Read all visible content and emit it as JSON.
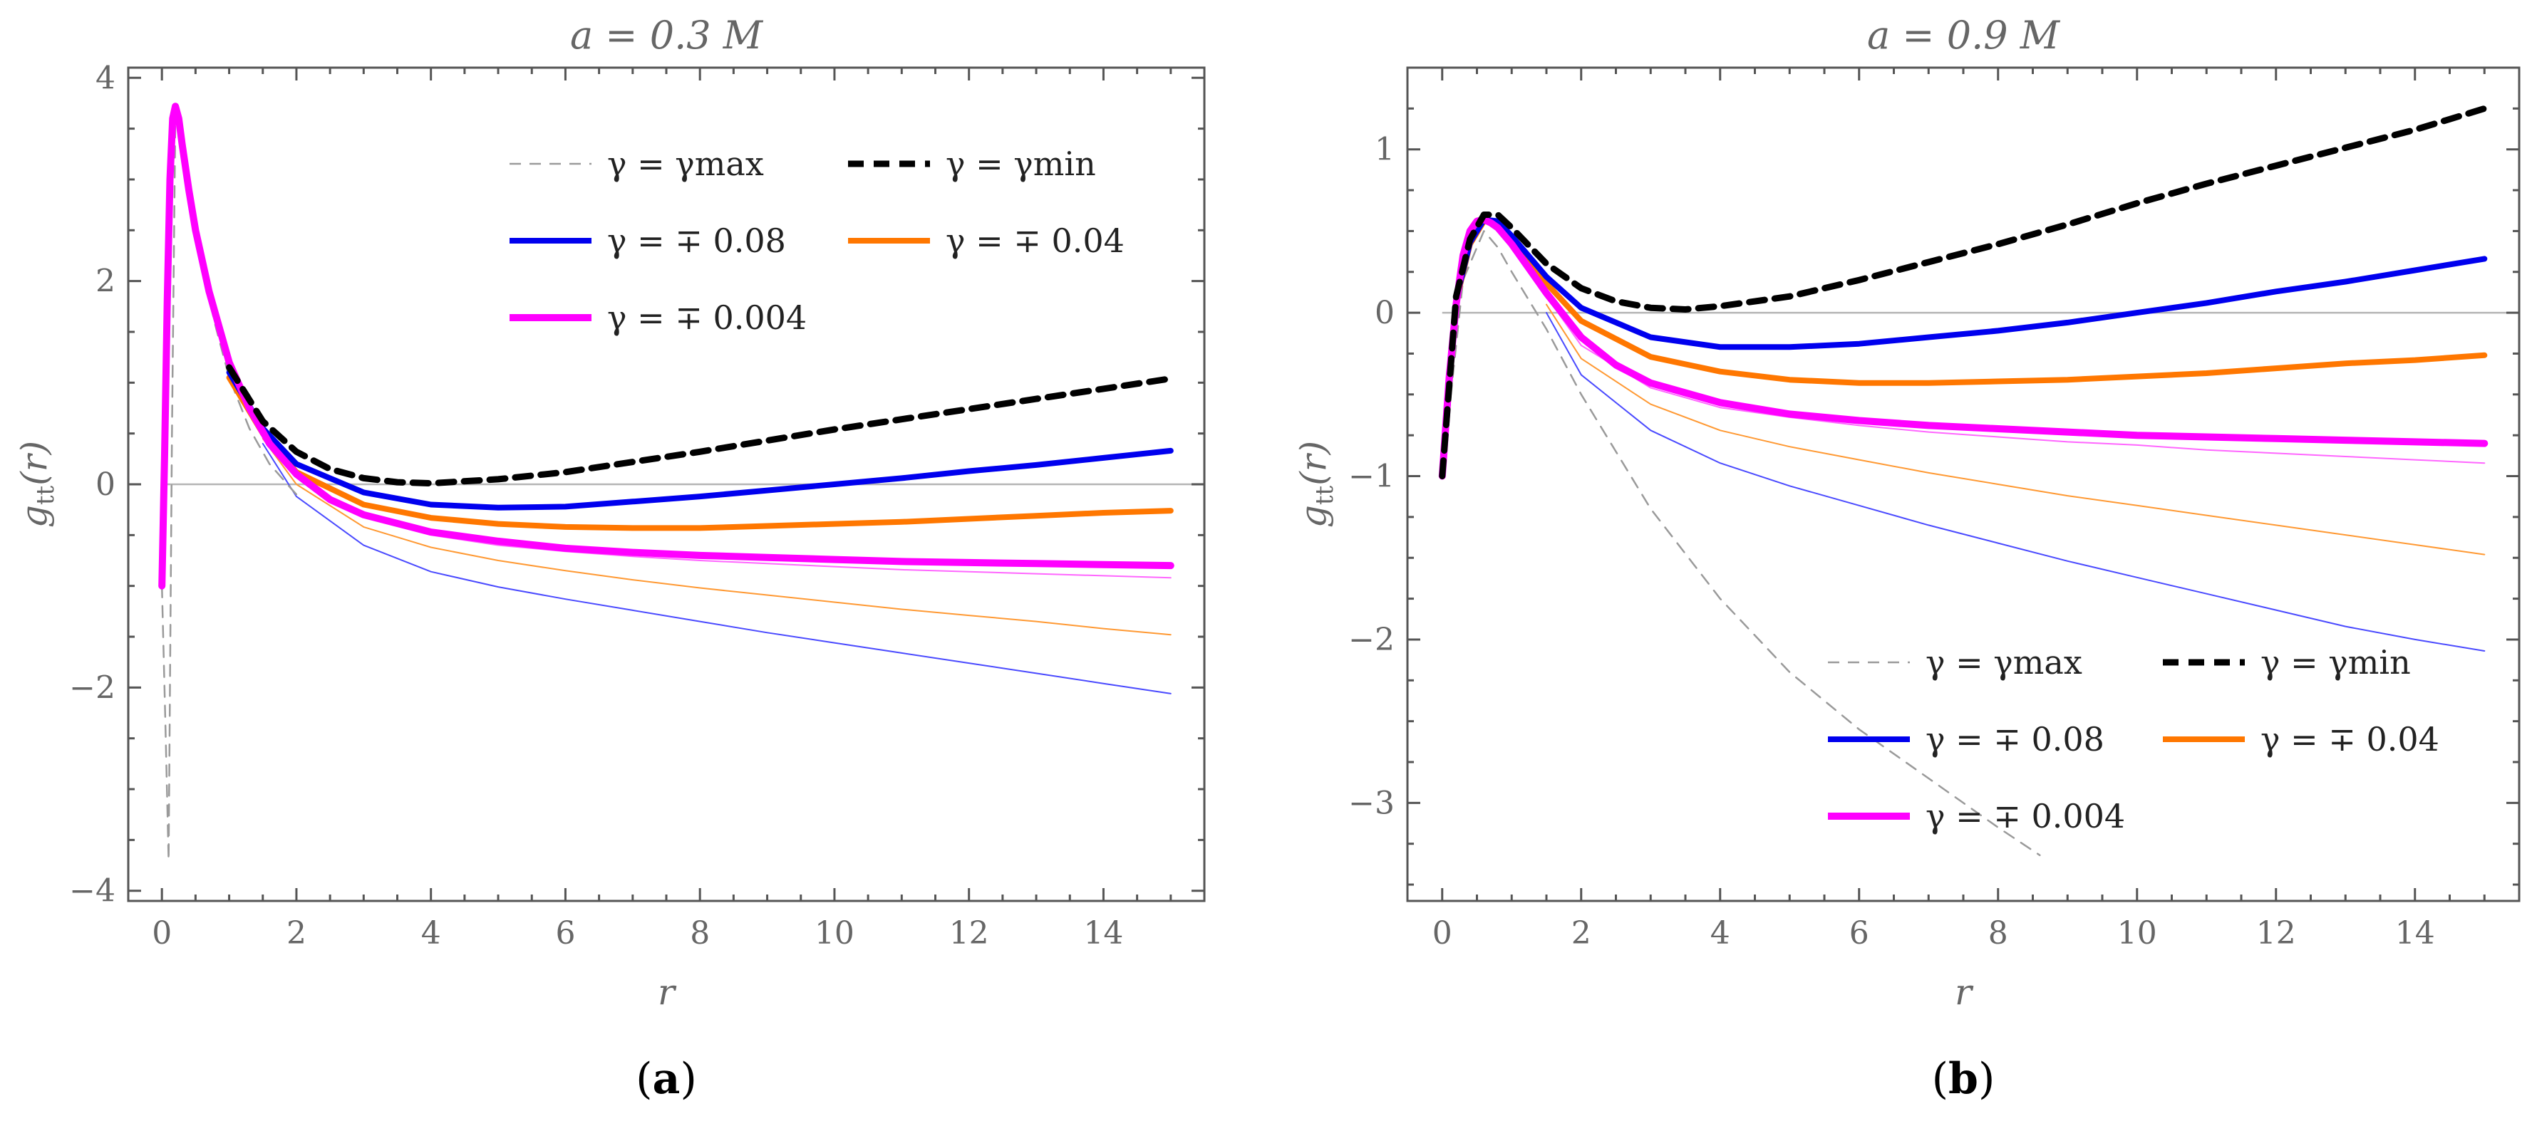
{
  "chart_data": [
    {
      "type": "line",
      "panel": "(a)",
      "title": "a = 0.3 M",
      "xlabel": "r",
      "ylabel": "g_tt(r)",
      "xlim": [
        -0.5,
        15.5
      ],
      "ylim": [
        -4.1,
        4.1
      ],
      "xticks": [
        0,
        2,
        4,
        6,
        8,
        10,
        12,
        14
      ],
      "yticks": [
        -4,
        -2,
        0,
        2,
        4
      ],
      "legend_position": "top-right",
      "legend": [
        {
          "label": "γ = γmax",
          "series": "gmax_dashed"
        },
        {
          "label": "γ = γmin",
          "series": "gmin_dashed"
        },
        {
          "label": "γ = ∓ 0.08",
          "series": "g008_thick"
        },
        {
          "label": "γ = ∓ 0.04",
          "series": "g004_thick"
        },
        {
          "label": "γ = ∓ 0.004",
          "series": "g0004_thick"
        }
      ],
      "series": [
        {
          "name": "gmax_dashed",
          "color": "#9a9a9a",
          "width": 2.5,
          "dash": "16 12",
          "x": [
            0.0,
            0.05,
            0.1,
            0.15,
            0.2,
            0.3,
            0.5,
            0.8,
            1.0,
            1.3,
            1.6,
            2.0
          ],
          "y": [
            -1.0,
            -2.3,
            -3.7,
            0.5,
            3.65,
            3.3,
            2.4,
            1.55,
            1.05,
            0.55,
            0.2,
            -0.1
          ]
        },
        {
          "name": "gmin_dashed",
          "color": "#000000",
          "width": 9,
          "dash": "22 14",
          "x": [
            1.0,
            1.5,
            2.0,
            2.5,
            3.0,
            3.5,
            4.0,
            5.0,
            6.0,
            7.0,
            8.0,
            9.0,
            10.0,
            11.0,
            12.0,
            13.0,
            14.0,
            15.0
          ],
          "y": [
            1.15,
            0.62,
            0.32,
            0.15,
            0.06,
            0.02,
            0.01,
            0.05,
            0.12,
            0.22,
            0.32,
            0.43,
            0.54,
            0.64,
            0.74,
            0.84,
            0.94,
            1.04
          ]
        },
        {
          "name": "g008_thick",
          "color": "#0000ee",
          "width": 8,
          "dash": "",
          "x": [
            1.0,
            1.5,
            2.0,
            3.0,
            4.0,
            5.0,
            6.0,
            7.0,
            8.0,
            9.0,
            10.0,
            11.0,
            12.0,
            13.0,
            14.0,
            15.0
          ],
          "y": [
            1.1,
            0.55,
            0.2,
            -0.08,
            -0.2,
            -0.23,
            -0.22,
            -0.17,
            -0.12,
            -0.06,
            0.0,
            0.06,
            0.13,
            0.19,
            0.26,
            0.33
          ]
        },
        {
          "name": "g004_thick",
          "color": "#ff7700",
          "width": 8,
          "dash": "",
          "x": [
            1.0,
            1.5,
            2.0,
            3.0,
            4.0,
            5.0,
            6.0,
            7.0,
            8.0,
            9.0,
            10.0,
            11.0,
            12.0,
            13.0,
            14.0,
            15.0
          ],
          "y": [
            1.05,
            0.5,
            0.12,
            -0.2,
            -0.33,
            -0.39,
            -0.42,
            -0.43,
            -0.43,
            -0.41,
            -0.39,
            -0.37,
            -0.34,
            -0.31,
            -0.28,
            -0.26
          ]
        },
        {
          "name": "g0004_thick",
          "color": "#ff00ff",
          "width": 10,
          "dash": "",
          "x": [
            0.0,
            0.04,
            0.08,
            0.12,
            0.16,
            0.2,
            0.25,
            0.3,
            0.4,
            0.5,
            0.7,
            1.0,
            1.3,
            1.6,
            2.0,
            2.5,
            3.0,
            4.0,
            5.0,
            6.0,
            7.0,
            8.0,
            9.0,
            10.0,
            11.0,
            12.0,
            13.0,
            14.0,
            15.0
          ],
          "y": [
            -1.0,
            0.3,
            1.8,
            3.0,
            3.6,
            3.72,
            3.6,
            3.35,
            2.9,
            2.5,
            1.9,
            1.2,
            0.75,
            0.4,
            0.1,
            -0.15,
            -0.3,
            -0.47,
            -0.56,
            -0.63,
            -0.67,
            -0.7,
            -0.72,
            -0.74,
            -0.76,
            -0.77,
            -0.78,
            -0.79,
            -0.8
          ]
        },
        {
          "name": "g0004_thin",
          "color": "#ff66ff",
          "width": 2,
          "dash": "",
          "x": [
            1.5,
            2.0,
            3.0,
            4.0,
            5.0,
            6.0,
            7.0,
            8.0,
            9.0,
            10.0,
            11.0,
            12.0,
            13.0,
            14.0,
            15.0
          ],
          "y": [
            0.5,
            0.08,
            -0.32,
            -0.5,
            -0.6,
            -0.66,
            -0.71,
            -0.75,
            -0.78,
            -0.81,
            -0.84,
            -0.86,
            -0.88,
            -0.9,
            -0.92
          ]
        },
        {
          "name": "g004_thin",
          "color": "#ff9933",
          "width": 2,
          "dash": "",
          "x": [
            1.5,
            2.0,
            3.0,
            4.0,
            5.0,
            6.0,
            7.0,
            8.0,
            9.0,
            10.0,
            11.0,
            12.0,
            13.0,
            14.0,
            15.0
          ],
          "y": [
            0.45,
            0.0,
            -0.42,
            -0.62,
            -0.75,
            -0.85,
            -0.94,
            -1.02,
            -1.09,
            -1.16,
            -1.23,
            -1.29,
            -1.35,
            -1.42,
            -1.48
          ]
        },
        {
          "name": "g008_thin",
          "color": "#4a4aff",
          "width": 2,
          "dash": "",
          "x": [
            1.5,
            2.0,
            3.0,
            4.0,
            5.0,
            6.0,
            7.0,
            8.0,
            9.0,
            10.0,
            11.0,
            12.0,
            13.0,
            14.0,
            15.0
          ],
          "y": [
            0.4,
            -0.12,
            -0.6,
            -0.86,
            -1.01,
            -1.13,
            -1.24,
            -1.35,
            -1.46,
            -1.56,
            -1.66,
            -1.76,
            -1.86,
            -1.96,
            -2.06
          ]
        }
      ]
    },
    {
      "type": "line",
      "panel": "(b)",
      "title": "a = 0.9 M",
      "xlabel": "r",
      "ylabel": "g_tt(r)",
      "xlim": [
        -0.5,
        15.5
      ],
      "ylim": [
        -3.6,
        1.5
      ],
      "xticks": [
        0,
        2,
        4,
        6,
        8,
        10,
        12,
        14
      ],
      "yticks": [
        -3,
        -2,
        -1,
        0,
        1
      ],
      "legend_position": "bottom-right",
      "legend": [
        {
          "label": "γ = γmax",
          "series": "gmax_dashed"
        },
        {
          "label": "γ = γmin",
          "series": "gmin_dashed"
        },
        {
          "label": "γ = ∓ 0.08",
          "series": "g008_thick"
        },
        {
          "label": "γ = ∓ 0.04",
          "series": "g004_thick"
        },
        {
          "label": "γ = ∓ 0.004",
          "series": "g0004_thick"
        }
      ],
      "series": [
        {
          "name": "gmax_dashed",
          "color": "#9a9a9a",
          "width": 2.5,
          "dash": "16 12",
          "x": [
            0.0,
            0.3,
            0.6,
            0.8,
            1.0,
            1.5,
            2.0,
            3.0,
            4.0,
            5.0,
            6.0,
            7.0,
            8.0,
            8.6
          ],
          "y": [
            -1.0,
            0.2,
            0.5,
            0.4,
            0.25,
            -0.1,
            -0.5,
            -1.2,
            -1.75,
            -2.2,
            -2.55,
            -2.85,
            -3.15,
            -3.32
          ]
        },
        {
          "name": "gmin_dashed",
          "color": "#000000",
          "width": 9,
          "dash": "22 14",
          "x": [
            0.0,
            0.2,
            0.4,
            0.6,
            0.8,
            1.0,
            1.5,
            2.0,
            2.5,
            3.0,
            3.5,
            4.0,
            5.0,
            6.0,
            7.0,
            8.0,
            9.0,
            10.0,
            11.0,
            12.0,
            13.0,
            14.0,
            15.0
          ],
          "y": [
            -1.0,
            0.1,
            0.45,
            0.6,
            0.6,
            0.52,
            0.3,
            0.15,
            0.07,
            0.03,
            0.02,
            0.04,
            0.1,
            0.2,
            0.31,
            0.42,
            0.54,
            0.67,
            0.79,
            0.9,
            1.01,
            1.12,
            1.25
          ]
        },
        {
          "name": "g008_thick",
          "color": "#0000ee",
          "width": 8,
          "dash": "",
          "x": [
            0.0,
            0.2,
            0.4,
            0.6,
            0.8,
            1.0,
            1.5,
            2.0,
            3.0,
            4.0,
            5.0,
            6.0,
            7.0,
            8.0,
            9.0,
            10.0,
            11.0,
            12.0,
            13.0,
            14.0,
            15.0
          ],
          "y": [
            -1.0,
            0.08,
            0.43,
            0.57,
            0.56,
            0.47,
            0.22,
            0.03,
            -0.15,
            -0.21,
            -0.21,
            -0.19,
            -0.15,
            -0.11,
            -0.06,
            0.0,
            0.06,
            0.13,
            0.19,
            0.26,
            0.33
          ]
        },
        {
          "name": "g004_thick",
          "color": "#ff7700",
          "width": 8,
          "dash": "",
          "x": [
            0.0,
            0.2,
            0.4,
            0.6,
            0.8,
            1.0,
            1.5,
            2.0,
            3.0,
            4.0,
            5.0,
            6.0,
            7.0,
            8.0,
            9.0,
            10.0,
            11.0,
            12.0,
            13.0,
            14.0,
            15.0
          ],
          "y": [
            -1.0,
            0.07,
            0.42,
            0.56,
            0.55,
            0.45,
            0.18,
            -0.05,
            -0.27,
            -0.36,
            -0.41,
            -0.43,
            -0.43,
            -0.42,
            -0.41,
            -0.39,
            -0.37,
            -0.34,
            -0.31,
            -0.29,
            -0.26
          ]
        },
        {
          "name": "g0004_thick",
          "color": "#ff00ff",
          "width": 10,
          "dash": "",
          "x": [
            0.0,
            0.1,
            0.2,
            0.3,
            0.4,
            0.5,
            0.6,
            0.7,
            0.8,
            1.0,
            1.2,
            1.5,
            2.0,
            2.5,
            3.0,
            4.0,
            5.0,
            6.0,
            7.0,
            8.0,
            9.0,
            10.0,
            11.0,
            12.0,
            13.0,
            14.0,
            15.0
          ],
          "y": [
            -1.0,
            -0.4,
            0.05,
            0.35,
            0.5,
            0.56,
            0.57,
            0.55,
            0.52,
            0.42,
            0.3,
            0.12,
            -0.15,
            -0.32,
            -0.43,
            -0.55,
            -0.62,
            -0.66,
            -0.69,
            -0.71,
            -0.73,
            -0.75,
            -0.76,
            -0.77,
            -0.78,
            -0.79,
            -0.8
          ]
        },
        {
          "name": "g0004_thin",
          "color": "#ff66ff",
          "width": 2,
          "dash": "",
          "x": [
            1.5,
            2.0,
            3.0,
            4.0,
            5.0,
            6.0,
            7.0,
            8.0,
            9.0,
            10.0,
            11.0,
            12.0,
            13.0,
            14.0,
            15.0
          ],
          "y": [
            0.1,
            -0.2,
            -0.46,
            -0.58,
            -0.64,
            -0.69,
            -0.73,
            -0.76,
            -0.79,
            -0.81,
            -0.84,
            -0.86,
            -0.88,
            -0.9,
            -0.92
          ]
        },
        {
          "name": "g004_thin",
          "color": "#ff9933",
          "width": 2,
          "dash": "",
          "x": [
            1.5,
            2.0,
            3.0,
            4.0,
            5.0,
            6.0,
            7.0,
            8.0,
            9.0,
            10.0,
            11.0,
            12.0,
            13.0,
            14.0,
            15.0
          ],
          "y": [
            0.05,
            -0.28,
            -0.56,
            -0.72,
            -0.82,
            -0.9,
            -0.98,
            -1.05,
            -1.12,
            -1.18,
            -1.24,
            -1.3,
            -1.36,
            -1.42,
            -1.48
          ]
        },
        {
          "name": "g008_thin",
          "color": "#4a4aff",
          "width": 2,
          "dash": "",
          "x": [
            1.5,
            2.0,
            3.0,
            4.0,
            5.0,
            6.0,
            7.0,
            8.0,
            9.0,
            10.0,
            11.0,
            12.0,
            13.0,
            14.0,
            15.0
          ],
          "y": [
            0.0,
            -0.38,
            -0.72,
            -0.92,
            -1.06,
            -1.18,
            -1.3,
            -1.41,
            -1.52,
            -1.62,
            -1.72,
            -1.82,
            -1.92,
            -2.0,
            -2.07
          ]
        }
      ]
    }
  ]
}
